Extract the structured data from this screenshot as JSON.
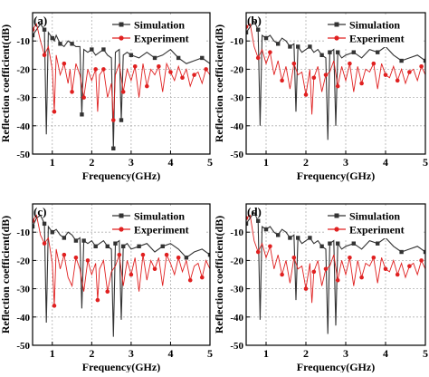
{
  "chart_data": [
    {
      "type": "line",
      "panel_label": "(a)",
      "xlabel": "Frequency(GHz)",
      "ylabel": "Reflection coefficient(dB)",
      "xlim": [
        0.5,
        5.0
      ],
      "ylim": [
        -50,
        0
      ],
      "xticks": [
        1,
        2,
        3,
        4,
        5
      ],
      "yticks": [
        -10,
        -20,
        -30,
        -40,
        -50
      ],
      "grid": true,
      "legend": "top-right",
      "series": [
        {
          "name": "Simulation",
          "color": "#333333",
          "marker": "square",
          "x": [
            0.5,
            0.6,
            0.7,
            0.8,
            0.85,
            0.9,
            1.0,
            1.05,
            1.1,
            1.2,
            1.3,
            1.4,
            1.5,
            1.6,
            1.7,
            1.75,
            1.8,
            1.9,
            2.0,
            2.1,
            2.2,
            2.3,
            2.4,
            2.5,
            2.55,
            2.6,
            2.7,
            2.75,
            2.8,
            2.9,
            3.0,
            3.2,
            3.4,
            3.6,
            3.8,
            4.0,
            4.2,
            4.4,
            4.6,
            4.8,
            5.0
          ],
          "y": [
            -8,
            -6,
            -4,
            -6,
            -43,
            -7,
            -9,
            -10,
            -8,
            -11,
            -12,
            -10,
            -11,
            -12,
            -12,
            -36,
            -13,
            -14,
            -13,
            -15,
            -14,
            -13,
            -15,
            -16,
            -48,
            -14,
            -13,
            -38,
            -15,
            -14,
            -15,
            -16,
            -14,
            -16,
            -15,
            -13,
            -16,
            -18,
            -17,
            -16,
            -18
          ]
        },
        {
          "name": "Experiment",
          "color": "#e02020",
          "marker": "circle",
          "x": [
            0.5,
            0.6,
            0.7,
            0.8,
            0.9,
            1.0,
            1.05,
            1.1,
            1.2,
            1.3,
            1.4,
            1.45,
            1.5,
            1.6,
            1.7,
            1.8,
            1.9,
            2.0,
            2.1,
            2.15,
            2.2,
            2.3,
            2.4,
            2.5,
            2.55,
            2.6,
            2.7,
            2.8,
            2.9,
            3.0,
            3.1,
            3.2,
            3.3,
            3.4,
            3.5,
            3.6,
            3.7,
            3.8,
            3.9,
            4.0,
            4.1,
            4.2,
            4.3,
            4.4,
            4.5,
            4.6,
            4.7,
            4.8,
            4.9,
            5.0
          ],
          "y": [
            -6,
            -4,
            -10,
            -15,
            -12,
            -20,
            -35,
            -15,
            -22,
            -18,
            -25,
            -20,
            -28,
            -18,
            -22,
            -30,
            -20,
            -24,
            -20,
            -35,
            -22,
            -20,
            -30,
            -25,
            -38,
            -22,
            -18,
            -28,
            -20,
            -24,
            -19,
            -30,
            -18,
            -26,
            -20,
            -22,
            -19,
            -28,
            -18,
            -21,
            -24,
            -19,
            -23,
            -20,
            -26,
            -22,
            -21,
            -25,
            -20,
            -22
          ]
        }
      ]
    },
    {
      "type": "line",
      "panel_label": "(b)",
      "xlabel": "Frequency(GHz)",
      "ylabel": "Reflection coefficient(dB)",
      "xlim": [
        0.5,
        5.0
      ],
      "ylim": [
        -50,
        0
      ],
      "xticks": [
        1,
        2,
        3,
        4,
        5
      ],
      "yticks": [
        -10,
        -20,
        -30,
        -40,
        -50
      ],
      "grid": true,
      "legend": "top-right",
      "series": [
        {
          "name": "Simulation",
          "color": "#333333",
          "marker": "square",
          "x": [
            0.5,
            0.6,
            0.7,
            0.8,
            0.85,
            0.9,
            1.0,
            1.1,
            1.2,
            1.3,
            1.4,
            1.5,
            1.6,
            1.7,
            1.75,
            1.8,
            1.9,
            2.0,
            2.1,
            2.2,
            2.3,
            2.4,
            2.5,
            2.55,
            2.6,
            2.7,
            2.75,
            2.8,
            2.9,
            3.0,
            3.2,
            3.4,
            3.6,
            3.8,
            4.0,
            4.2,
            4.4,
            4.6,
            4.8,
            5.0
          ],
          "y": [
            -7,
            -5,
            -3,
            -6,
            -40,
            -8,
            -9,
            -8,
            -10,
            -11,
            -9,
            -10,
            -12,
            -11,
            -35,
            -12,
            -14,
            -13,
            -12,
            -14,
            -13,
            -15,
            -16,
            -45,
            -14,
            -13,
            -40,
            -14,
            -16,
            -15,
            -14,
            -16,
            -13,
            -14,
            -12,
            -15,
            -17,
            -16,
            -15,
            -17
          ]
        },
        {
          "name": "Experiment",
          "color": "#e02020",
          "marker": "circle",
          "x": [
            0.5,
            0.6,
            0.7,
            0.8,
            0.9,
            1.0,
            1.1,
            1.2,
            1.3,
            1.4,
            1.5,
            1.6,
            1.7,
            1.8,
            1.9,
            2.0,
            2.1,
            2.15,
            2.2,
            2.3,
            2.4,
            2.5,
            2.6,
            2.7,
            2.8,
            2.9,
            3.0,
            3.1,
            3.2,
            3.3,
            3.4,
            3.5,
            3.6,
            3.7,
            3.8,
            3.9,
            4.0,
            4.1,
            4.2,
            4.3,
            4.4,
            4.5,
            4.6,
            4.7,
            4.8,
            4.9,
            5.0
          ],
          "y": [
            -5,
            -4,
            -12,
            -16,
            -13,
            -18,
            -14,
            -22,
            -17,
            -24,
            -19,
            -27,
            -18,
            -22,
            -21,
            -29,
            -20,
            -36,
            -23,
            -19,
            -28,
            -22,
            -21,
            -17,
            -26,
            -19,
            -24,
            -18,
            -28,
            -19,
            -25,
            -20,
            -21,
            -18,
            -27,
            -18,
            -22,
            -23,
            -19,
            -24,
            -20,
            -25,
            -21,
            -20,
            -24,
            -19,
            -22
          ]
        }
      ]
    },
    {
      "type": "line",
      "panel_label": "(c)",
      "xlabel": "Frequency(GHz)",
      "ylabel": "Reflection coefficient(dB)",
      "xlim": [
        0.5,
        5.0
      ],
      "ylim": [
        -50,
        0
      ],
      "xticks": [
        1,
        2,
        3,
        4,
        5
      ],
      "yticks": [
        -10,
        -20,
        -30,
        -40,
        -50
      ],
      "grid": true,
      "legend": "top-right",
      "series": [
        {
          "name": "Simulation",
          "color": "#333333",
          "marker": "square",
          "x": [
            0.5,
            0.6,
            0.7,
            0.8,
            0.85,
            0.9,
            1.0,
            1.1,
            1.2,
            1.3,
            1.4,
            1.5,
            1.6,
            1.7,
            1.75,
            1.8,
            1.9,
            2.0,
            2.1,
            2.2,
            2.3,
            2.4,
            2.5,
            2.55,
            2.6,
            2.7,
            2.75,
            2.8,
            2.9,
            3.0,
            3.2,
            3.4,
            3.6,
            3.8,
            4.0,
            4.2,
            4.4,
            4.6,
            4.8,
            5.0
          ],
          "y": [
            -8,
            -5,
            -4,
            -7,
            -42,
            -8,
            -10,
            -9,
            -11,
            -12,
            -10,
            -11,
            -13,
            -12,
            -37,
            -13,
            -14,
            -13,
            -15,
            -14,
            -13,
            -15,
            -16,
            -47,
            -14,
            -13,
            -41,
            -15,
            -14,
            -16,
            -15,
            -14,
            -17,
            -15,
            -14,
            -16,
            -19,
            -17,
            -16,
            -18
          ]
        },
        {
          "name": "Experiment",
          "color": "#e02020",
          "marker": "circle",
          "x": [
            0.5,
            0.6,
            0.7,
            0.8,
            0.9,
            1.0,
            1.05,
            1.1,
            1.2,
            1.3,
            1.4,
            1.5,
            1.6,
            1.7,
            1.8,
            1.9,
            2.0,
            2.1,
            2.15,
            2.2,
            2.3,
            2.4,
            2.5,
            2.6,
            2.7,
            2.8,
            2.9,
            3.0,
            3.1,
            3.2,
            3.3,
            3.4,
            3.5,
            3.6,
            3.7,
            3.8,
            3.9,
            4.0,
            4.1,
            4.2,
            4.3,
            4.4,
            4.5,
            4.6,
            4.7,
            4.8,
            4.9,
            5.0
          ],
          "y": [
            -6,
            -4,
            -11,
            -14,
            -12,
            -21,
            -36,
            -16,
            -23,
            -18,
            -26,
            -29,
            -19,
            -23,
            -31,
            -20,
            -25,
            -21,
            -34,
            -23,
            -20,
            -31,
            -24,
            -22,
            -18,
            -29,
            -20,
            -25,
            -19,
            -31,
            -18,
            -27,
            -20,
            -23,
            -19,
            -29,
            -18,
            -21,
            -25,
            -19,
            -24,
            -20,
            -27,
            -22,
            -21,
            -26,
            -20,
            -23
          ]
        }
      ]
    },
    {
      "type": "line",
      "panel_label": "(d)",
      "xlabel": "Frequency(GHz)",
      "ylabel": "Reflection coefficient(dB)",
      "xlim": [
        0.5,
        5.0
      ],
      "ylim": [
        -50,
        0
      ],
      "xticks": [
        1,
        2,
        3,
        4,
        5
      ],
      "yticks": [
        -10,
        -20,
        -30,
        -40,
        -50
      ],
      "grid": true,
      "legend": "top-right",
      "series": [
        {
          "name": "Simulation",
          "color": "#333333",
          "marker": "square",
          "x": [
            0.5,
            0.6,
            0.7,
            0.8,
            0.85,
            0.9,
            1.0,
            1.1,
            1.2,
            1.3,
            1.4,
            1.5,
            1.6,
            1.7,
            1.75,
            1.8,
            1.9,
            2.0,
            2.1,
            2.2,
            2.3,
            2.4,
            2.5,
            2.55,
            2.6,
            2.7,
            2.75,
            2.8,
            2.9,
            3.0,
            3.2,
            3.4,
            3.6,
            3.8,
            4.0,
            4.2,
            4.4,
            4.6,
            4.8,
            5.0
          ],
          "y": [
            -7,
            -5,
            -3,
            -6,
            -41,
            -8,
            -9,
            -8,
            -10,
            -11,
            -9,
            -10,
            -12,
            -11,
            -34,
            -12,
            -14,
            -13,
            -12,
            -14,
            -13,
            -15,
            -16,
            -46,
            -14,
            -13,
            -43,
            -14,
            -16,
            -15,
            -14,
            -16,
            -13,
            -14,
            -12,
            -15,
            -17,
            -16,
            -15,
            -17
          ]
        },
        {
          "name": "Experiment",
          "color": "#e02020",
          "marker": "circle",
          "x": [
            0.5,
            0.6,
            0.7,
            0.8,
            0.9,
            1.0,
            1.1,
            1.2,
            1.3,
            1.4,
            1.5,
            1.6,
            1.7,
            1.8,
            1.9,
            2.0,
            2.1,
            2.15,
            2.2,
            2.3,
            2.4,
            2.5,
            2.6,
            2.7,
            2.8,
            2.9,
            3.0,
            3.1,
            3.2,
            3.3,
            3.4,
            3.5,
            3.6,
            3.7,
            3.8,
            3.9,
            4.0,
            4.1,
            4.2,
            4.3,
            4.4,
            4.5,
            4.6,
            4.7,
            4.8,
            4.9,
            5.0
          ],
          "y": [
            -5,
            -4,
            -13,
            -17,
            -14,
            -19,
            -15,
            -23,
            -18,
            -25,
            -20,
            -28,
            -19,
            -23,
            -22,
            -30,
            -21,
            -35,
            -24,
            -20,
            -29,
            -23,
            -22,
            -18,
            -27,
            -20,
            -25,
            -19,
            -29,
            -20,
            -26,
            -21,
            -22,
            -19,
            -28,
            -19,
            -23,
            -24,
            -20,
            -25,
            -21,
            -26,
            -22,
            -21,
            -25,
            -20,
            -23
          ]
        }
      ]
    }
  ]
}
